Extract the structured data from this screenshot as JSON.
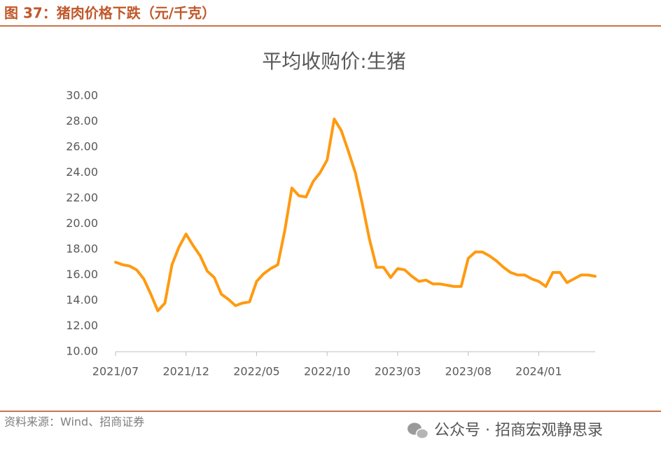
{
  "figure_title": "图 37：猪肉价格下跌（元/千克）",
  "source": "资料来源：Wind、招商证券",
  "watermark": "公众号 · 招商宏观静思录",
  "chart_data": {
    "type": "line",
    "title": "平均收购价:生猪",
    "categories": [
      "2021/07",
      null,
      null,
      null,
      null,
      null,
      null,
      null,
      null,
      null,
      "2021/12",
      null,
      null,
      null,
      null,
      null,
      null,
      null,
      null,
      null,
      "2022/05",
      null,
      null,
      null,
      null,
      null,
      null,
      null,
      null,
      null,
      "2022/10",
      null,
      null,
      null,
      null,
      null,
      null,
      null,
      null,
      null,
      "2023/03",
      null,
      null,
      null,
      null,
      null,
      null,
      null,
      null,
      null,
      "2023/08",
      null,
      null,
      null,
      null,
      null,
      null,
      null,
      null,
      null,
      "2024/01",
      null,
      null,
      null,
      null,
      null,
      null,
      null,
      null
    ],
    "values": [
      17.0,
      16.8,
      16.7,
      16.4,
      15.7,
      14.5,
      13.2,
      13.8,
      16.8,
      18.2,
      19.2,
      18.3,
      17.5,
      16.3,
      15.8,
      14.5,
      14.1,
      13.6,
      13.8,
      13.9,
      15.5,
      16.1,
      16.5,
      16.8,
      19.5,
      22.8,
      22.2,
      22.1,
      23.3,
      24.0,
      25.0,
      28.2,
      27.3,
      25.7,
      24.0,
      21.5,
      18.8,
      16.6,
      16.6,
      15.8,
      16.5,
      16.4,
      15.9,
      15.5,
      15.6,
      15.3,
      15.3,
      15.2,
      15.1,
      15.1,
      17.3,
      17.8,
      17.8,
      17.5,
      17.1,
      16.6,
      16.2,
      16.0,
      16.0,
      15.7,
      15.5,
      15.1,
      16.2,
      16.2,
      15.4,
      15.7,
      16.0,
      16.0,
      15.9
    ],
    "color": "#ff9a10",
    "ylim": [
      10,
      30
    ],
    "yticks": [
      {
        "value": 10,
        "label": "10.00"
      },
      {
        "value": 12,
        "label": "12.00"
      },
      {
        "value": 14,
        "label": "14.00"
      },
      {
        "value": 16,
        "label": "16.00"
      },
      {
        "value": 18,
        "label": "18.00"
      },
      {
        "value": 20,
        "label": "20.00"
      },
      {
        "value": 22,
        "label": "22.00"
      },
      {
        "value": 24,
        "label": "24.00"
      },
      {
        "value": 26,
        "label": "26.00"
      },
      {
        "value": 28,
        "label": "28.00"
      },
      {
        "value": 30,
        "label": "30.00"
      }
    ],
    "grid": false
  }
}
